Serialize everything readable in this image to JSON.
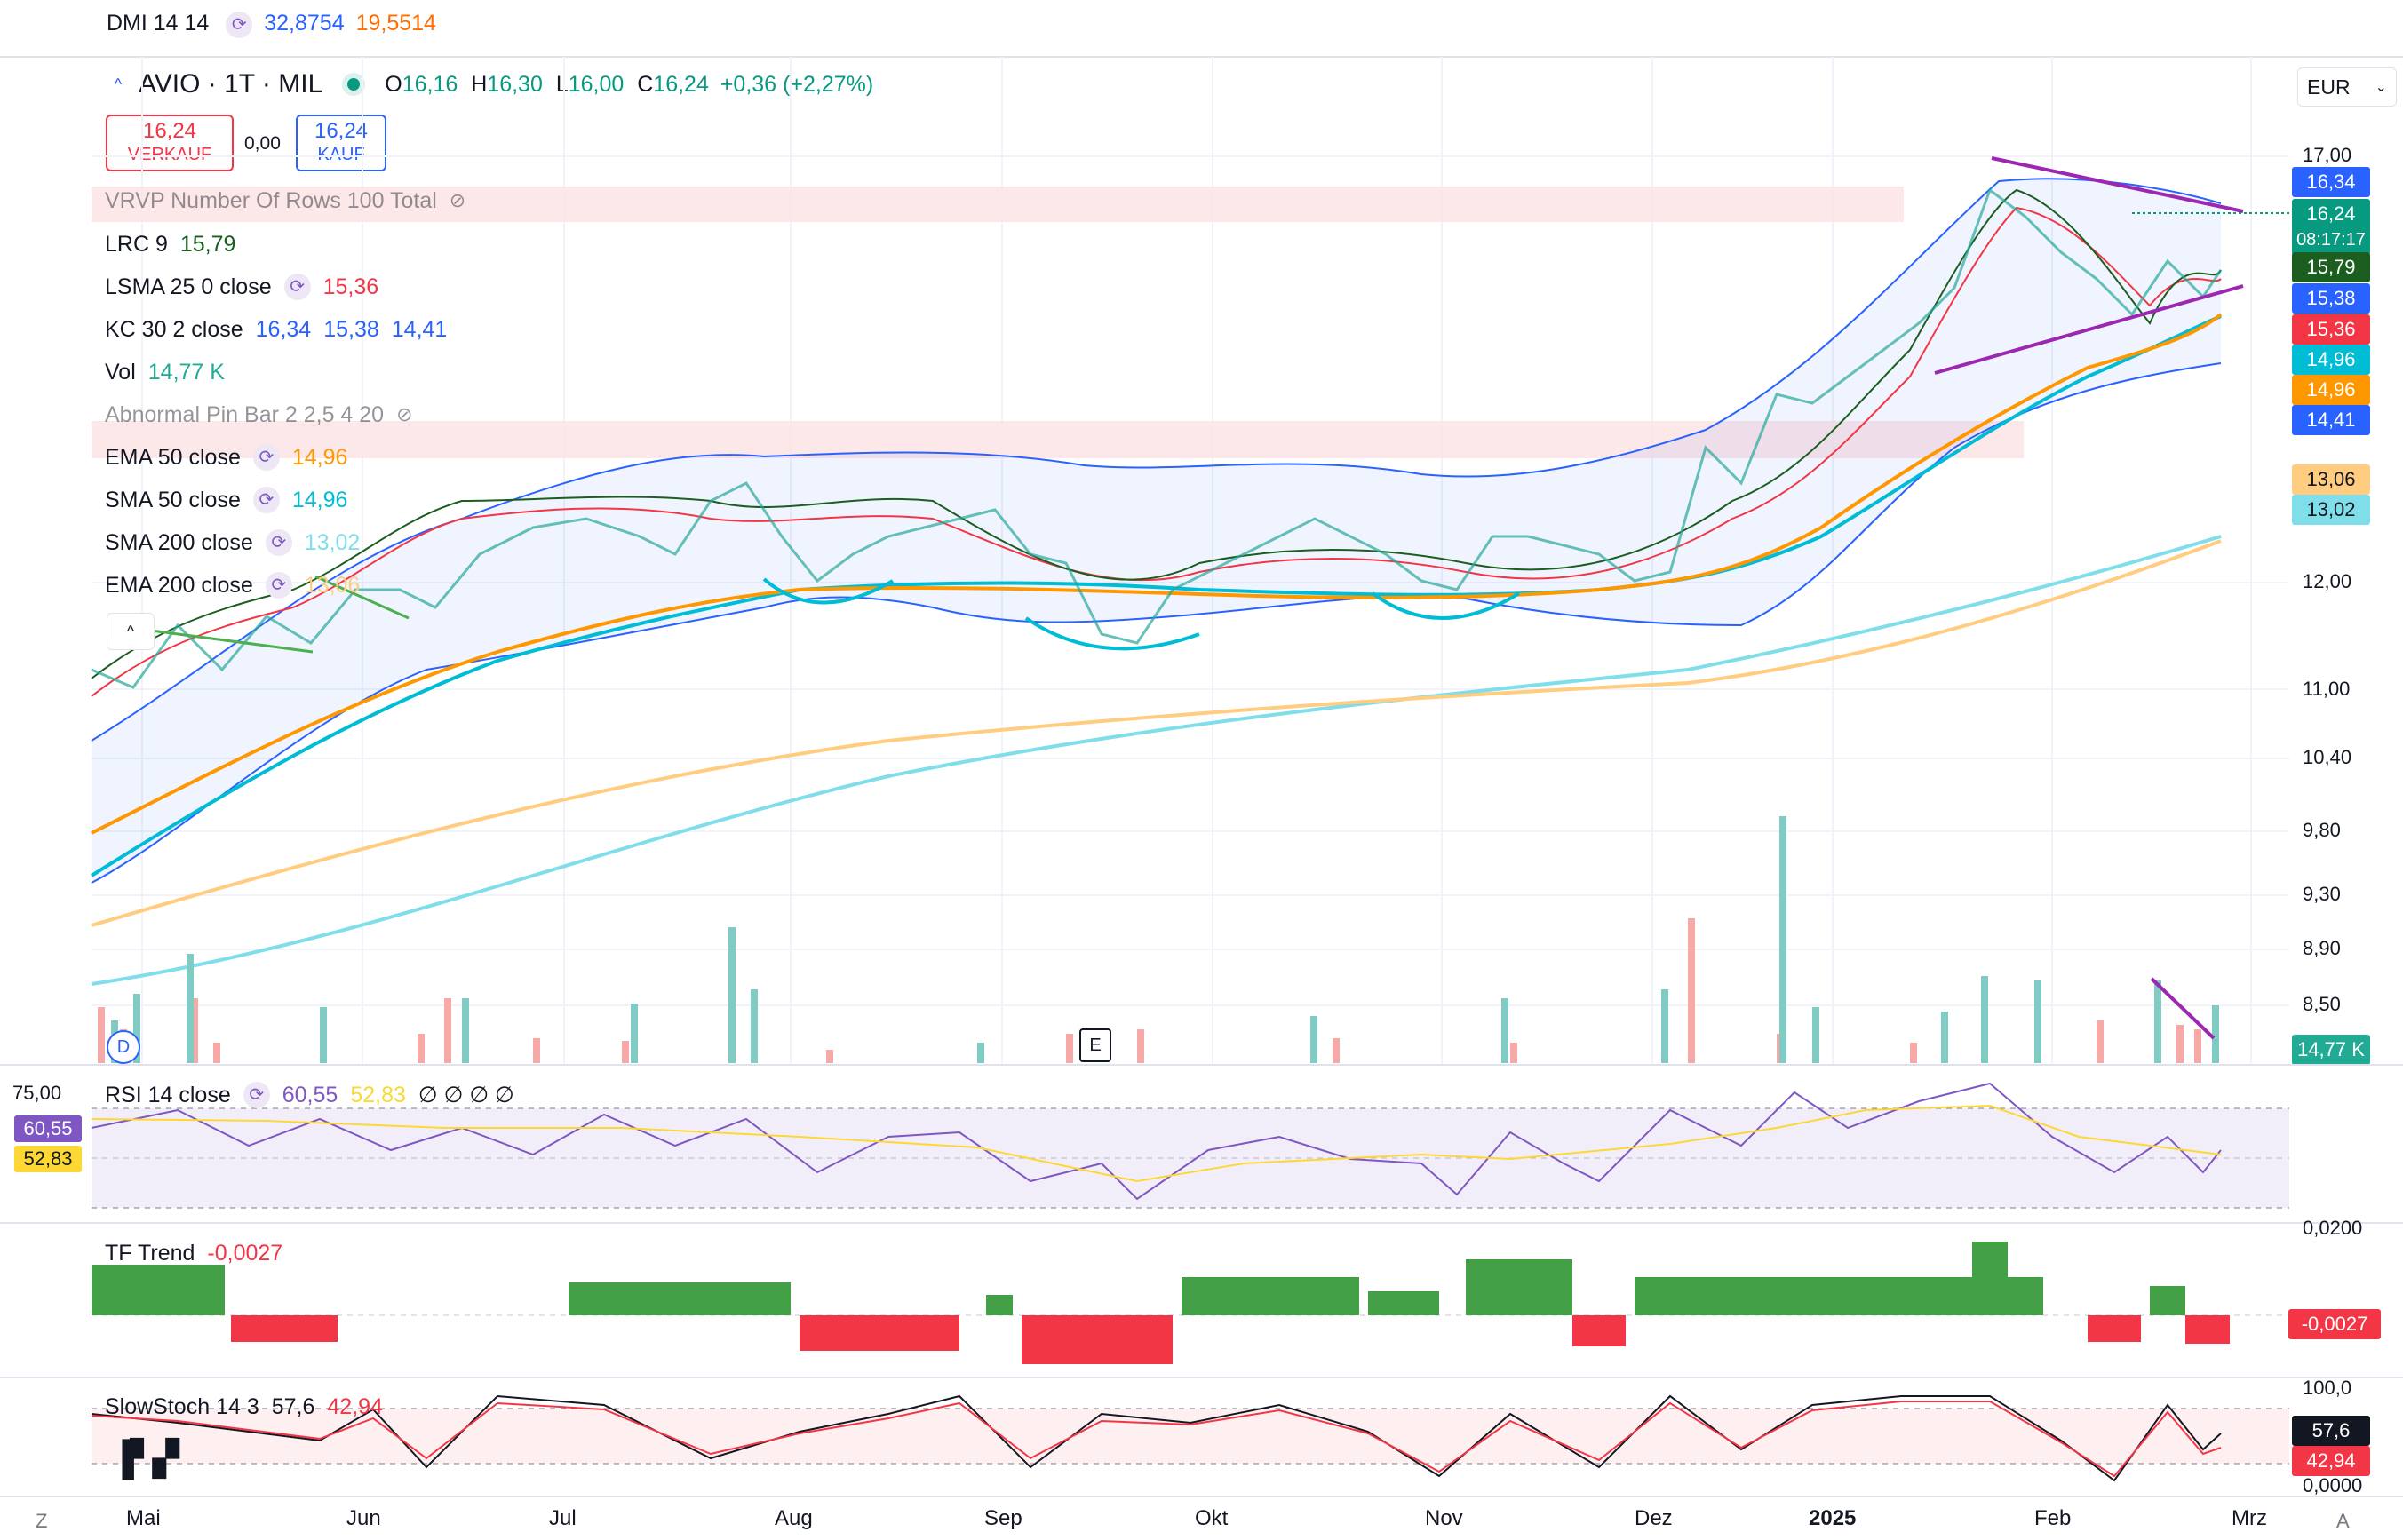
{
  "dmi": {
    "label": "DMI 14 14",
    "v1": "32,8754",
    "v2": "19,5514"
  },
  "symbol": {
    "title": "AVIO · 1T · MIL",
    "o_label": "O",
    "o": "16,16",
    "h_label": "H",
    "h": "16,30",
    "l_label": "L",
    "l": "16,00",
    "c_label": "C",
    "c": "16,24",
    "change": "+0,36 (+2,27%)"
  },
  "trade": {
    "sell_price": "16,24",
    "sell_label": "VERKAUF",
    "spread": "0,00",
    "buy_price": "16,24",
    "buy_label": "KAUF"
  },
  "currency": "EUR",
  "indicators": [
    {
      "name": "VRVP Number Of Rows 100 Total",
      "values": [],
      "hidden": true
    },
    {
      "name": "LRC 9",
      "values": [
        "15,79"
      ],
      "colors": [
        "#1b5e20"
      ]
    },
    {
      "name": "LSMA 25 0 close",
      "values": [
        "15,36"
      ],
      "colors": [
        "#f23645"
      ],
      "sync": true
    },
    {
      "name": "KC 30 2 close",
      "values": [
        "16,34",
        "15,38",
        "14,41"
      ],
      "colors": [
        "#2962ff",
        "#2962ff",
        "#2962ff"
      ]
    },
    {
      "name": "Vol",
      "values": [
        "14,77 K"
      ],
      "colors": [
        "#22ab94"
      ]
    },
    {
      "name": "Abnormal Pin Bar 2 2,5 4 20",
      "values": [],
      "hidden": true
    },
    {
      "name": "EMA 50 close",
      "values": [
        "14,96"
      ],
      "colors": [
        "#ff9800"
      ],
      "sync": true
    },
    {
      "name": "SMA 50 close",
      "values": [
        "14,96"
      ],
      "colors": [
        "#00bcd4"
      ],
      "sync": true
    },
    {
      "name": "SMA 200 close",
      "values": [
        "13,02"
      ],
      "colors": [
        "#80deea"
      ],
      "sync": true
    },
    {
      "name": "EMA 200 close",
      "values": [
        "13,06"
      ],
      "colors": [
        "#ffcc80"
      ],
      "sync": true
    }
  ],
  "price_axis": [
    "17,00",
    "12,00",
    "11,00",
    "10,40",
    "9,80",
    "9,30",
    "8,90",
    "8,50"
  ],
  "price_tags": [
    {
      "text": "16,34",
      "color": "#2962ff"
    },
    {
      "text": "16,24",
      "color": "#089981"
    },
    {
      "text": "08:17:17",
      "color": "#089981"
    },
    {
      "text": "15,79",
      "color": "#1b5e20"
    },
    {
      "text": "15,38",
      "color": "#2962ff"
    },
    {
      "text": "15,36",
      "color": "#f23645"
    },
    {
      "text": "14,96",
      "color": "#00bcd4"
    },
    {
      "text": "14,96",
      "color": "#ff9800"
    },
    {
      "text": "14,41",
      "color": "#2962ff"
    },
    {
      "text": "13,06",
      "color": "#ffcc80"
    },
    {
      "text": "13,02",
      "color": "#80deea"
    },
    {
      "text": "14,77 K",
      "color": "#22ab94"
    }
  ],
  "rsi": {
    "label": "RSI 14 close",
    "v1": "60,55",
    "v2": "52,83",
    "extra": "∅ ∅ ∅ ∅",
    "axis_top": "75,00",
    "tag1": "60,55",
    "tag2": "52,83"
  },
  "tf": {
    "label": "TF Trend",
    "value": "-0,0027",
    "axis_top": "0,0200",
    "tag": "-0,0027"
  },
  "stoch": {
    "label": "SlowStoch 14 3",
    "k": "57,6",
    "d": "42,94",
    "axis_top": "100,0",
    "axis_bottom": "0,0000",
    "tag_k": "57,6",
    "tag_d": "42,94"
  },
  "months": [
    "Mai",
    "Jun",
    "Jul",
    "Aug",
    "Sep",
    "Okt",
    "Nov",
    "Dez",
    "2025",
    "Feb",
    "Mrz"
  ],
  "bottom": {
    "left": "Z",
    "right": "A",
    "dividend": "D",
    "earnings": "E"
  }
}
